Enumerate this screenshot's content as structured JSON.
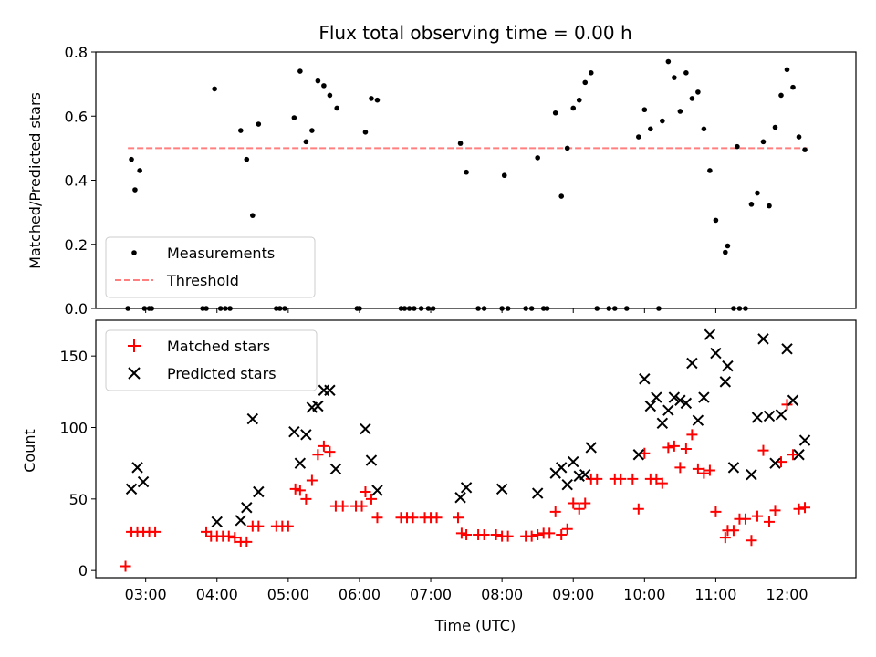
{
  "chart_data": [
    {
      "type": "scatter",
      "title": "Flux total observing time = 0.00 h",
      "xlabel": "",
      "ylabel": "Matched/Predicted stars",
      "xlim": [
        "02:18",
        "12:58"
      ],
      "ylim": [
        0,
        0.8
      ],
      "xticks": [
        "03:00",
        "04:00",
        "05:00",
        "06:00",
        "07:00",
        "08:00",
        "09:00",
        "10:00",
        "11:00",
        "12:00"
      ],
      "yticks": [
        "0.0",
        "0.2",
        "0.4",
        "0.6",
        "0.8"
      ],
      "grid": false,
      "legend_position": "lower-left",
      "series": [
        {
          "name": "Measurements",
          "color": "#000000",
          "marker": "dot",
          "points": [
            [
              "02:45",
              0.0
            ],
            [
              "02:48",
              0.465
            ],
            [
              "02:51",
              0.37
            ],
            [
              "02:55",
              0.43
            ],
            [
              "02:59",
              0.0
            ],
            [
              "03:03",
              0.0
            ],
            [
              "03:05",
              0.0
            ],
            [
              "03:48",
              0.0
            ],
            [
              "03:51",
              0.0
            ],
            [
              "03:58",
              0.685
            ],
            [
              "04:03",
              0.0
            ],
            [
              "04:07",
              0.0
            ],
            [
              "04:11",
              0.0
            ],
            [
              "04:20",
              0.555
            ],
            [
              "04:25",
              0.465
            ],
            [
              "04:30",
              0.29
            ],
            [
              "04:35",
              0.575
            ],
            [
              "04:50",
              0.0
            ],
            [
              "04:53",
              0.0
            ],
            [
              "04:57",
              0.0
            ],
            [
              "05:05",
              0.595
            ],
            [
              "05:10",
              0.74
            ],
            [
              "05:15",
              0.52
            ],
            [
              "05:20",
              0.555
            ],
            [
              "05:25",
              0.71
            ],
            [
              "05:30",
              0.695
            ],
            [
              "05:35",
              0.665
            ],
            [
              "05:41",
              0.625
            ],
            [
              "05:58",
              0.0
            ],
            [
              "06:00",
              0.0
            ],
            [
              "06:05",
              0.55
            ],
            [
              "06:10",
              0.655
            ],
            [
              "06:15",
              0.65
            ],
            [
              "06:35",
              0.0
            ],
            [
              "06:38",
              0.0
            ],
            [
              "06:42",
              0.0
            ],
            [
              "06:46",
              0.0
            ],
            [
              "06:52",
              0.0
            ],
            [
              "06:58",
              0.0
            ],
            [
              "07:02",
              0.0
            ],
            [
              "07:25",
              0.515
            ],
            [
              "07:30",
              0.425
            ],
            [
              "07:40",
              0.0
            ],
            [
              "07:45",
              0.0
            ],
            [
              "08:00",
              0.0
            ],
            [
              "08:02",
              0.415
            ],
            [
              "08:05",
              0.0
            ],
            [
              "08:20",
              0.0
            ],
            [
              "08:25",
              0.0
            ],
            [
              "08:30",
              0.47
            ],
            [
              "08:35",
              0.0
            ],
            [
              "08:38",
              0.0
            ],
            [
              "08:45",
              0.61
            ],
            [
              "08:50",
              0.35
            ],
            [
              "08:55",
              0.5
            ],
            [
              "09:00",
              0.625
            ],
            [
              "09:05",
              0.65
            ],
            [
              "09:10",
              0.705
            ],
            [
              "09:15",
              0.735
            ],
            [
              "09:20",
              0.0
            ],
            [
              "09:30",
              0.0
            ],
            [
              "09:35",
              0.0
            ],
            [
              "09:45",
              0.0
            ],
            [
              "09:55",
              0.535
            ],
            [
              "10:00",
              0.62
            ],
            [
              "10:05",
              0.56
            ],
            [
              "10:12",
              0.0
            ],
            [
              "10:15",
              0.585
            ],
            [
              "10:20",
              0.77
            ],
            [
              "10:25",
              0.72
            ],
            [
              "10:30",
              0.615
            ],
            [
              "10:35",
              0.735
            ],
            [
              "10:40",
              0.655
            ],
            [
              "10:45",
              0.675
            ],
            [
              "10:50",
              0.56
            ],
            [
              "10:55",
              0.43
            ],
            [
              "11:00",
              0.275
            ],
            [
              "11:08",
              0.175
            ],
            [
              "11:10",
              0.195
            ],
            [
              "11:15",
              0.0
            ],
            [
              "11:18",
              0.505
            ],
            [
              "11:20",
              0.0
            ],
            [
              "11:25",
              0.0
            ],
            [
              "11:30",
              0.325
            ],
            [
              "11:35",
              0.36
            ],
            [
              "11:40",
              0.52
            ],
            [
              "11:45",
              0.32
            ],
            [
              "11:50",
              0.565
            ],
            [
              "11:55",
              0.665
            ],
            [
              "12:00",
              0.745
            ],
            [
              "12:05",
              0.69
            ],
            [
              "12:10",
              0.535
            ],
            [
              "12:15",
              0.495
            ]
          ]
        },
        {
          "name": "Threshold",
          "color": "#ff7f7f",
          "style": "dashed",
          "x": [
            "02:45",
            "12:17"
          ],
          "y": [
            0.5,
            0.5
          ]
        }
      ]
    },
    {
      "type": "scatter",
      "title": "",
      "xlabel": "Time (UTC)",
      "ylabel": "Count",
      "xlim": [
        "02:18",
        "12:58"
      ],
      "ylim": [
        -5,
        175
      ],
      "xticks": [
        "03:00",
        "04:00",
        "05:00",
        "06:00",
        "07:00",
        "08:00",
        "09:00",
        "10:00",
        "11:00",
        "12:00"
      ],
      "yticks": [
        "0",
        "50",
        "100",
        "150"
      ],
      "grid": false,
      "legend_position": "upper-left",
      "series": [
        {
          "name": "Matched stars",
          "color": "#ff0000",
          "marker": "plus",
          "points": [
            [
              "02:43",
              3
            ],
            [
              "02:48",
              27
            ],
            [
              "02:53",
              27
            ],
            [
              "02:58",
              27
            ],
            [
              "03:03",
              27
            ],
            [
              "03:08",
              27
            ],
            [
              "03:51",
              27
            ],
            [
              "03:55",
              24
            ],
            [
              "04:00",
              24
            ],
            [
              "04:05",
              24
            ],
            [
              "04:10",
              24
            ],
            [
              "04:15",
              23
            ],
            [
              "04:20",
              20
            ],
            [
              "04:25",
              20
            ],
            [
              "04:30",
              31
            ],
            [
              "04:35",
              31
            ],
            [
              "04:50",
              31
            ],
            [
              "04:55",
              31
            ],
            [
              "05:00",
              31
            ],
            [
              "05:06",
              57
            ],
            [
              "05:10",
              56
            ],
            [
              "05:15",
              50
            ],
            [
              "05:20",
              63
            ],
            [
              "05:25",
              81
            ],
            [
              "05:30",
              87
            ],
            [
              "05:35",
              83
            ],
            [
              "05:40",
              45
            ],
            [
              "05:46",
              45
            ],
            [
              "05:57",
              45
            ],
            [
              "06:02",
              45
            ],
            [
              "06:05",
              55
            ],
            [
              "06:10",
              50
            ],
            [
              "06:15",
              37
            ],
            [
              "06:35",
              37
            ],
            [
              "06:40",
              37
            ],
            [
              "06:45",
              37
            ],
            [
              "06:55",
              37
            ],
            [
              "07:00",
              37
            ],
            [
              "07:05",
              37
            ],
            [
              "07:23",
              37
            ],
            [
              "07:26",
              26
            ],
            [
              "07:30",
              25
            ],
            [
              "07:40",
              25
            ],
            [
              "07:45",
              25
            ],
            [
              "07:55",
              25
            ],
            [
              "08:00",
              24
            ],
            [
              "08:05",
              24
            ],
            [
              "08:20",
              24
            ],
            [
              "08:25",
              24
            ],
            [
              "08:30",
              25
            ],
            [
              "08:35",
              26
            ],
            [
              "08:40",
              26
            ],
            [
              "08:45",
              41
            ],
            [
              "08:50",
              25
            ],
            [
              "08:55",
              29
            ],
            [
              "09:00",
              47
            ],
            [
              "09:05",
              43
            ],
            [
              "09:10",
              47
            ],
            [
              "09:15",
              64
            ],
            [
              "09:20",
              64
            ],
            [
              "09:35",
              64
            ],
            [
              "09:40",
              64
            ],
            [
              "09:50",
              64
            ],
            [
              "09:55",
              43
            ],
            [
              "10:00",
              82
            ],
            [
              "10:05",
              64
            ],
            [
              "10:10",
              64
            ],
            [
              "10:15",
              61
            ],
            [
              "10:20",
              86
            ],
            [
              "10:25",
              87
            ],
            [
              "10:30",
              72
            ],
            [
              "10:35",
              85
            ],
            [
              "10:40",
              95
            ],
            [
              "10:45",
              71
            ],
            [
              "10:50",
              68
            ],
            [
              "10:55",
              70
            ],
            [
              "11:00",
              41
            ],
            [
              "11:08",
              23
            ],
            [
              "11:10",
              28
            ],
            [
              "11:15",
              28
            ],
            [
              "11:20",
              36
            ],
            [
              "11:25",
              36
            ],
            [
              "11:30",
              21
            ],
            [
              "11:35",
              38
            ],
            [
              "11:40",
              84
            ],
            [
              "11:45",
              34
            ],
            [
              "11:50",
              42
            ],
            [
              "11:55",
              76
            ],
            [
              "12:00",
              116
            ],
            [
              "12:05",
              81
            ],
            [
              "12:10",
              43
            ],
            [
              "12:15",
              44
            ]
          ]
        },
        {
          "name": "Predicted stars",
          "color": "#000000",
          "marker": "x",
          "points": [
            [
              "02:48",
              57
            ],
            [
              "02:53",
              72
            ],
            [
              "02:58",
              62
            ],
            [
              "04:00",
              34
            ],
            [
              "04:20",
              35
            ],
            [
              "04:25",
              44
            ],
            [
              "04:30",
              106
            ],
            [
              "04:35",
              55
            ],
            [
              "05:05",
              97
            ],
            [
              "05:10",
              75
            ],
            [
              "05:15",
              95
            ],
            [
              "05:20",
              114
            ],
            [
              "05:25",
              115
            ],
            [
              "05:30",
              126
            ],
            [
              "05:35",
              126
            ],
            [
              "05:40",
              71
            ],
            [
              "06:05",
              99
            ],
            [
              "06:10",
              77
            ],
            [
              "06:15",
              56
            ],
            [
              "07:25",
              51
            ],
            [
              "07:30",
              58
            ],
            [
              "08:00",
              57
            ],
            [
              "08:30",
              54
            ],
            [
              "08:45",
              68
            ],
            [
              "08:50",
              72
            ],
            [
              "08:55",
              60
            ],
            [
              "09:00",
              76
            ],
            [
              "09:05",
              66
            ],
            [
              "09:10",
              67
            ],
            [
              "09:15",
              86
            ],
            [
              "09:55",
              81
            ],
            [
              "10:00",
              134
            ],
            [
              "10:05",
              115
            ],
            [
              "10:10",
              121
            ],
            [
              "10:15",
              103
            ],
            [
              "10:20",
              112
            ],
            [
              "10:25",
              121
            ],
            [
              "10:30",
              119
            ],
            [
              "10:35",
              117
            ],
            [
              "10:40",
              145
            ],
            [
              "10:45",
              105
            ],
            [
              "10:50",
              121
            ],
            [
              "10:55",
              165
            ],
            [
              "11:00",
              152
            ],
            [
              "11:08",
              132
            ],
            [
              "11:10",
              143
            ],
            [
              "11:15",
              72
            ],
            [
              "11:30",
              67
            ],
            [
              "11:35",
              107
            ],
            [
              "11:40",
              162
            ],
            [
              "11:45",
              108
            ],
            [
              "11:50",
              75
            ],
            [
              "11:55",
              109
            ],
            [
              "12:00",
              155
            ],
            [
              "12:05",
              119
            ],
            [
              "12:10",
              81
            ],
            [
              "12:15",
              91
            ]
          ]
        }
      ]
    }
  ]
}
